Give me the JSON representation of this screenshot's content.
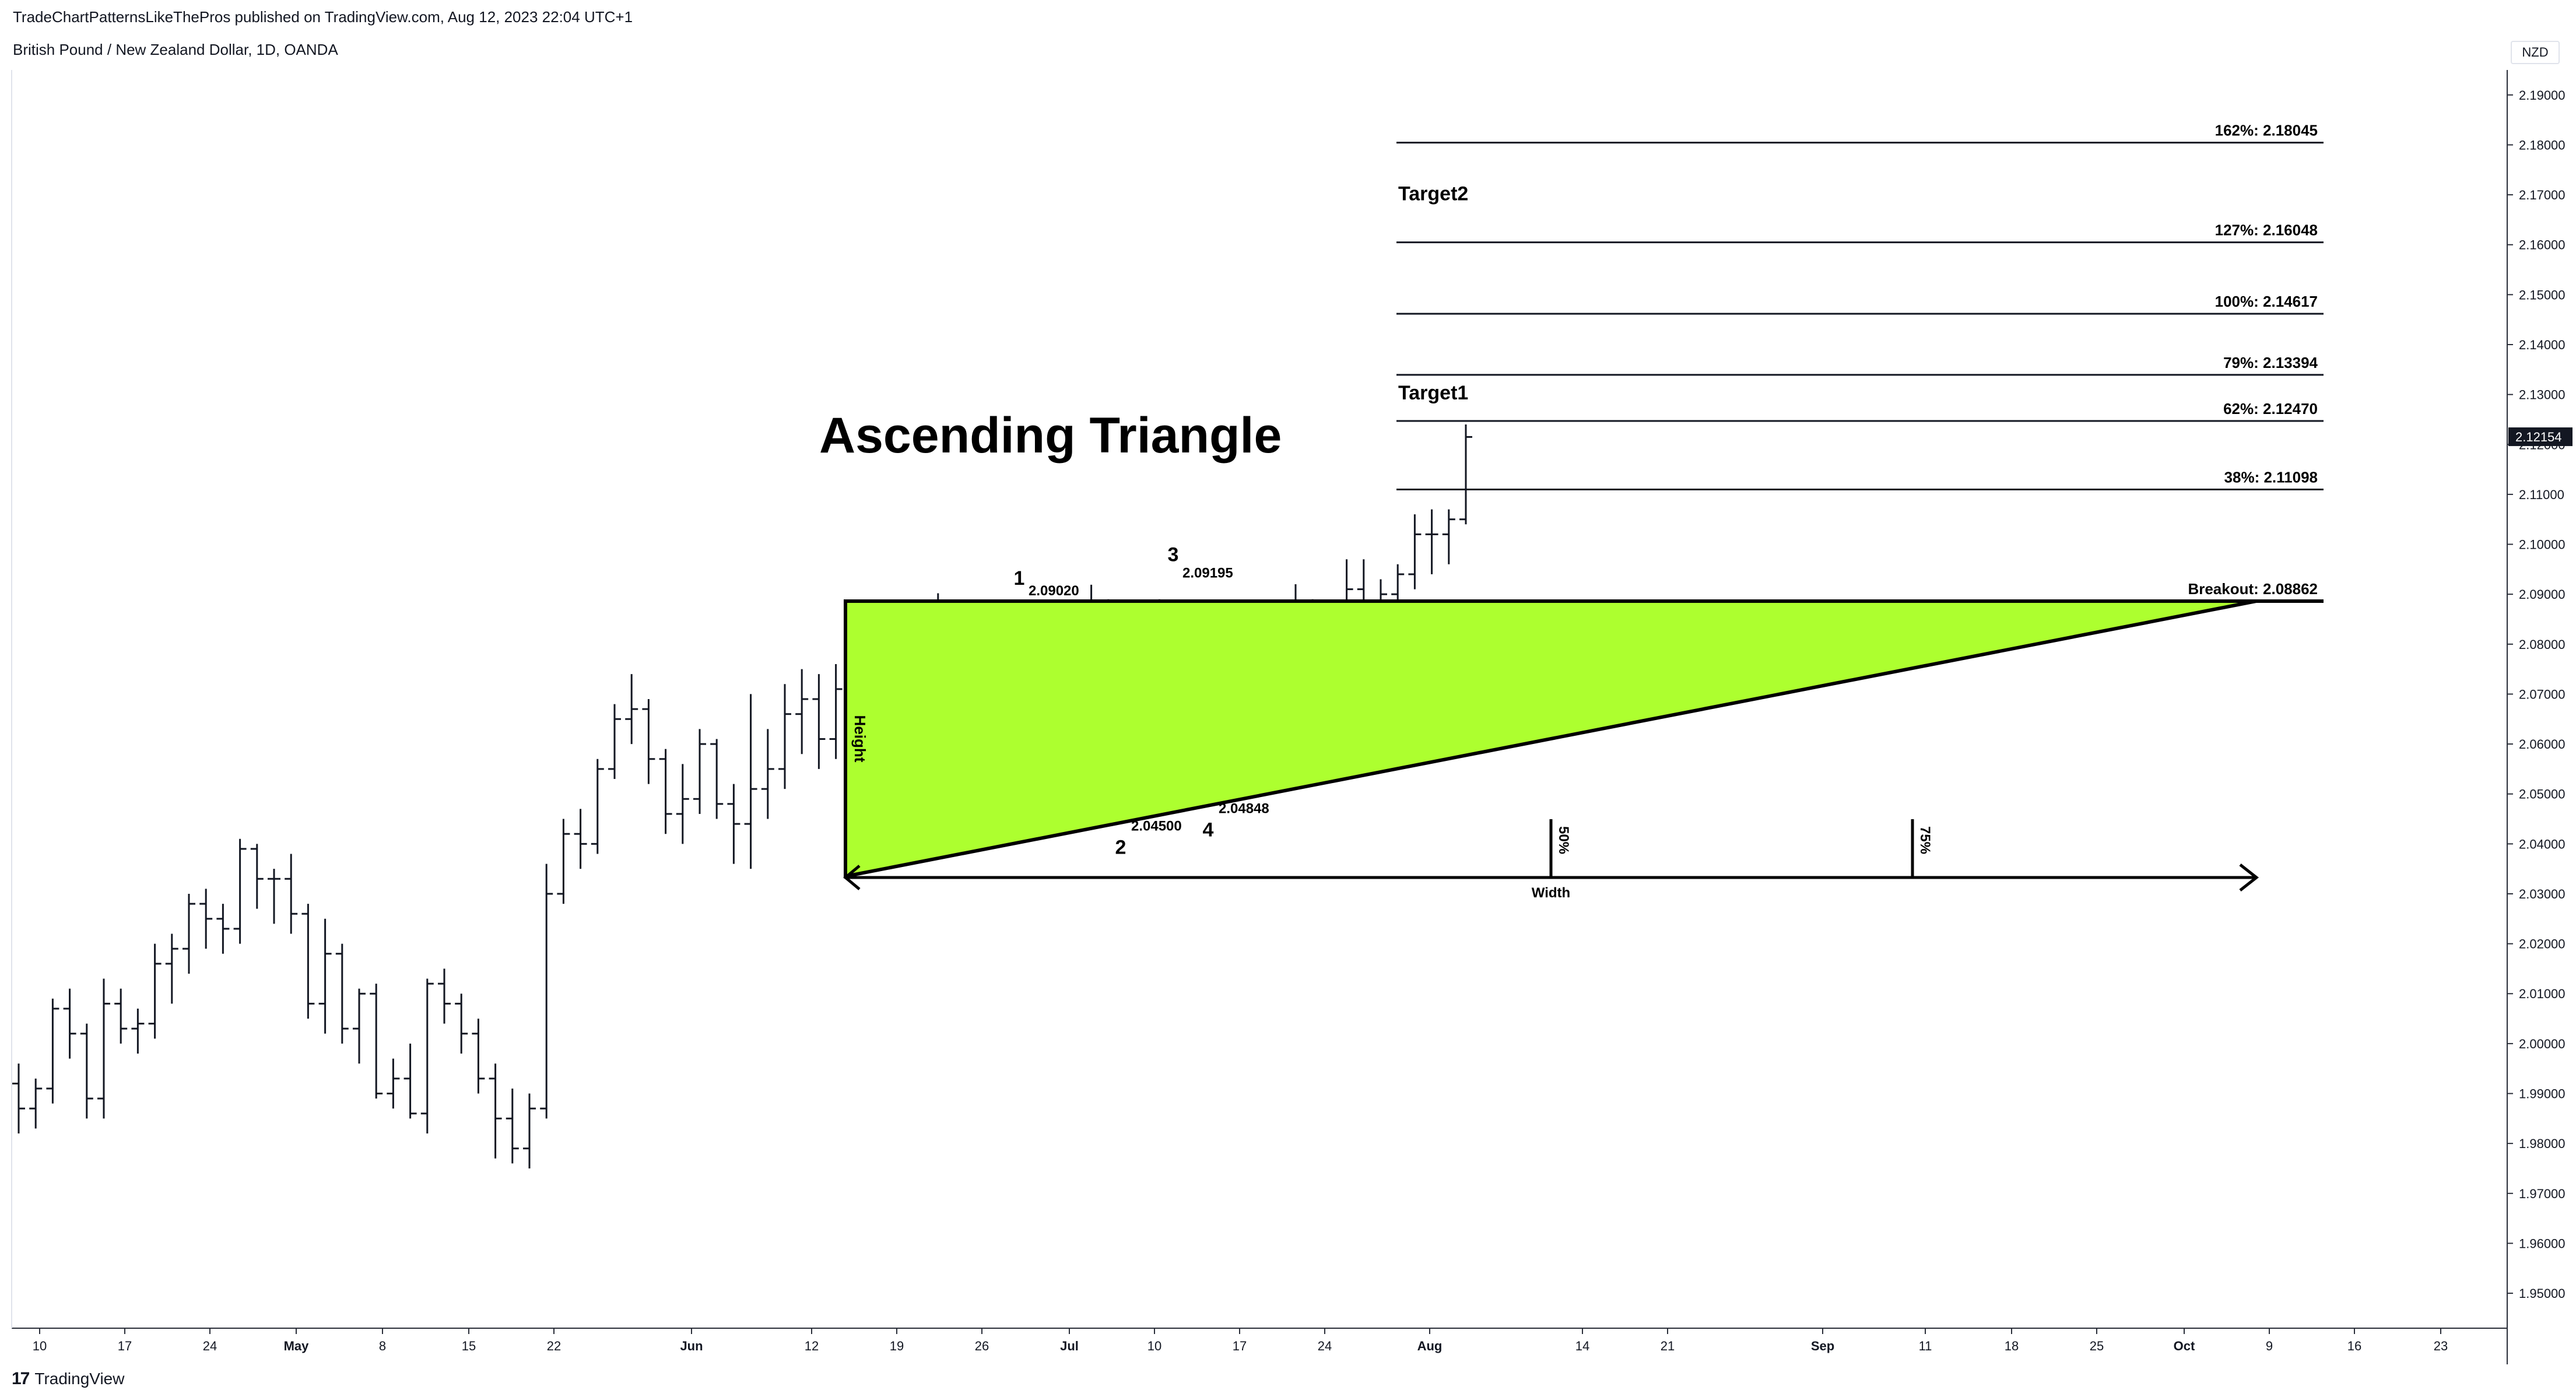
{
  "header": {
    "published": "TradeChartPatternsLikeThePros published on TradingView.com, Aug 12, 2023 22:04 UTC+1",
    "symbol": "British Pound / New Zealand Dollar, 1D, OANDA",
    "currency": "NZD"
  },
  "footer": {
    "logo_mark": "17",
    "logo_text": "TradingView"
  },
  "chart_data": {
    "type": "ohlc",
    "title": "Ascending Triangle",
    "x_axis_labels": [
      "10",
      "17",
      "24",
      "May",
      "8",
      "15",
      "22",
      "Jun",
      "12",
      "19",
      "26",
      "Jul",
      "10",
      "17",
      "24",
      "Aug",
      "14",
      "21",
      "Sep",
      "11",
      "18",
      "25",
      "Oct",
      "9",
      "16",
      "23"
    ],
    "y_axis_ticks": [
      "1.95000",
      "1.96000",
      "1.97000",
      "1.98000",
      "1.99000",
      "2.00000",
      "2.01000",
      "2.02000",
      "2.03000",
      "2.04000",
      "2.05000",
      "2.06000",
      "2.07000",
      "2.08000",
      "2.09000",
      "2.10000",
      "2.11000",
      "2.12000",
      "2.13000",
      "2.14000",
      "2.15000",
      "2.16000",
      "2.17000",
      "2.18000",
      "2.19000"
    ],
    "ylim": [
      1.943,
      2.195
    ],
    "last_price": "2.12154",
    "ohlc": [
      [
        1.992,
        1.996,
        1.982,
        1.987
      ],
      [
        1.987,
        1.993,
        1.983,
        1.991
      ],
      [
        1.991,
        2.009,
        1.988,
        2.007
      ],
      [
        2.007,
        2.011,
        1.997,
        2.002
      ],
      [
        2.002,
        2.004,
        1.985,
        1.989
      ],
      [
        1.989,
        2.013,
        1.985,
        2.008
      ],
      [
        2.008,
        2.011,
        2.0,
        2.003
      ],
      [
        2.003,
        2.007,
        1.998,
        2.004
      ],
      [
        2.004,
        2.02,
        2.001,
        2.016
      ],
      [
        2.016,
        2.022,
        2.008,
        2.019
      ],
      [
        2.019,
        2.03,
        2.014,
        2.028
      ],
      [
        2.028,
        2.031,
        2.019,
        2.025
      ],
      [
        2.025,
        2.028,
        2.018,
        2.023
      ],
      [
        2.023,
        2.041,
        2.02,
        2.039
      ],
      [
        2.039,
        2.04,
        2.027,
        2.033
      ],
      [
        2.033,
        2.035,
        2.024,
        2.033
      ],
      [
        2.033,
        2.038,
        2.022,
        2.026
      ],
      [
        2.026,
        2.028,
        2.005,
        2.008
      ],
      [
        2.008,
        2.025,
        2.002,
        2.018
      ],
      [
        2.018,
        2.02,
        2.0,
        2.003
      ],
      [
        2.003,
        2.011,
        1.996,
        2.01
      ],
      [
        2.01,
        2.012,
        1.989,
        1.99
      ],
      [
        1.99,
        1.997,
        1.987,
        1.993
      ],
      [
        1.993,
        2.0,
        1.985,
        1.986
      ],
      [
        1.986,
        2.013,
        1.982,
        2.012
      ],
      [
        2.012,
        2.015,
        2.004,
        2.008
      ],
      [
        2.008,
        2.01,
        1.998,
        2.002
      ],
      [
        2.002,
        2.005,
        1.99,
        1.993
      ],
      [
        1.993,
        1.996,
        1.977,
        1.985
      ],
      [
        1.985,
        1.991,
        1.976,
        1.979
      ],
      [
        1.979,
        1.99,
        1.975,
        1.987
      ],
      [
        1.987,
        2.036,
        1.985,
        2.03
      ],
      [
        2.03,
        2.045,
        2.028,
        2.042
      ],
      [
        2.042,
        2.047,
        2.035,
        2.04
      ],
      [
        2.04,
        2.057,
        2.038,
        2.055
      ],
      [
        2.055,
        2.068,
        2.053,
        2.065
      ],
      [
        2.065,
        2.074,
        2.06,
        2.067
      ],
      [
        2.067,
        2.069,
        2.052,
        2.057
      ],
      [
        2.057,
        2.059,
        2.042,
        2.046
      ],
      [
        2.046,
        2.056,
        2.04,
        2.049
      ],
      [
        2.049,
        2.063,
        2.046,
        2.06
      ],
      [
        2.06,
        2.061,
        2.045,
        2.048
      ],
      [
        2.048,
        2.052,
        2.036,
        2.044
      ],
      [
        2.044,
        2.07,
        2.035,
        2.051
      ],
      [
        2.051,
        2.063,
        2.045,
        2.055
      ],
      [
        2.055,
        2.072,
        2.051,
        2.066
      ],
      [
        2.066,
        2.075,
        2.058,
        2.069
      ],
      [
        2.069,
        2.074,
        2.055,
        2.061
      ],
      [
        2.061,
        2.076,
        2.057,
        2.071
      ],
      [
        2.071,
        2.074,
        2.06,
        2.064
      ],
      [
        2.064,
        2.078,
        2.059,
        2.072
      ],
      [
        2.072,
        2.08,
        2.062,
        2.067
      ],
      [
        2.067,
        2.072,
        2.052,
        2.06
      ],
      [
        2.06,
        2.07,
        2.055,
        2.068
      ],
      [
        2.068,
        2.0902,
        2.065,
        2.082
      ],
      [
        2.082,
        2.085,
        2.07,
        2.078
      ],
      [
        2.078,
        2.081,
        2.066,
        2.07
      ],
      [
        2.07,
        2.074,
        2.058,
        2.063
      ],
      [
        2.063,
        2.065,
        2.049,
        2.053
      ],
      [
        2.053,
        2.059,
        2.045,
        2.058
      ],
      [
        2.058,
        2.07,
        2.045,
        2.067
      ],
      [
        2.067,
        2.073,
        2.062,
        2.068
      ],
      [
        2.068,
        2.072,
        2.058,
        2.07
      ],
      [
        2.07,
        2.0919,
        2.067,
        2.088
      ],
      [
        2.088,
        2.089,
        2.06,
        2.063
      ],
      [
        2.063,
        2.066,
        2.0485,
        2.052
      ],
      [
        2.052,
        2.062,
        2.05,
        2.061
      ],
      [
        2.061,
        2.089,
        2.057,
        2.069
      ],
      [
        2.069,
        2.078,
        2.061,
        2.064
      ],
      [
        2.064,
        2.067,
        2.05,
        2.065
      ],
      [
        2.065,
        2.088,
        2.061,
        2.083
      ],
      [
        2.083,
        2.086,
        2.063,
        2.07
      ],
      [
        2.07,
        2.082,
        2.066,
        2.077
      ],
      [
        2.077,
        2.086,
        2.07,
        2.084
      ],
      [
        2.084,
        2.088,
        2.067,
        2.072
      ],
      [
        2.072,
        2.092,
        2.069,
        2.088
      ],
      [
        2.088,
        2.089,
        2.064,
        2.067
      ],
      [
        2.067,
        2.082,
        2.065,
        2.08
      ],
      [
        2.08,
        2.097,
        2.077,
        2.091
      ],
      [
        2.091,
        2.097,
        2.084,
        2.088
      ],
      [
        2.088,
        2.093,
        2.083,
        2.09
      ],
      [
        2.09,
        2.096,
        2.084,
        2.094
      ],
      [
        2.094,
        2.106,
        2.091,
        2.102
      ],
      [
        2.102,
        2.107,
        2.094,
        2.102
      ],
      [
        2.102,
        2.107,
        2.096,
        2.105
      ],
      [
        2.105,
        2.124,
        2.104,
        2.1215
      ]
    ],
    "pattern": {
      "name": "Ascending Triangle",
      "resistance_level": 2.08862,
      "support_start": 2.0335,
      "swing_points": [
        {
          "label": "1",
          "price_label": "2.09020",
          "price": 2.0902
        },
        {
          "label": "2",
          "price_label": "2.04500",
          "price": 2.045
        },
        {
          "label": "3",
          "price_label": "2.09195",
          "price": 2.09195
        },
        {
          "label": "4",
          "price_label": "2.04848",
          "price": 2.04848
        }
      ],
      "height_label": "Height",
      "width_label": "Width",
      "width_markers": [
        "50%",
        "75%"
      ],
      "fill_color": "#adff2f",
      "outline_color": "#000000"
    },
    "levels": [
      {
        "label": "Breakout: 2.08862",
        "price": 2.08862,
        "style": "thick"
      },
      {
        "label": "38%: 2.11098",
        "price": 2.11098
      },
      {
        "label": "62%: 2.12470",
        "price": 2.1247
      },
      {
        "label": "79%: 2.13394",
        "price": 2.13394
      },
      {
        "label": "100%: 2.14617",
        "price": 2.14617
      },
      {
        "label": "127%: 2.16048",
        "price": 2.16048
      },
      {
        "label": "162%: 2.18045",
        "price": 2.18045
      }
    ],
    "targets": [
      {
        "label": "Target1",
        "price": 2.13394
      },
      {
        "label": "Target2",
        "price": 2.16048
      }
    ]
  }
}
